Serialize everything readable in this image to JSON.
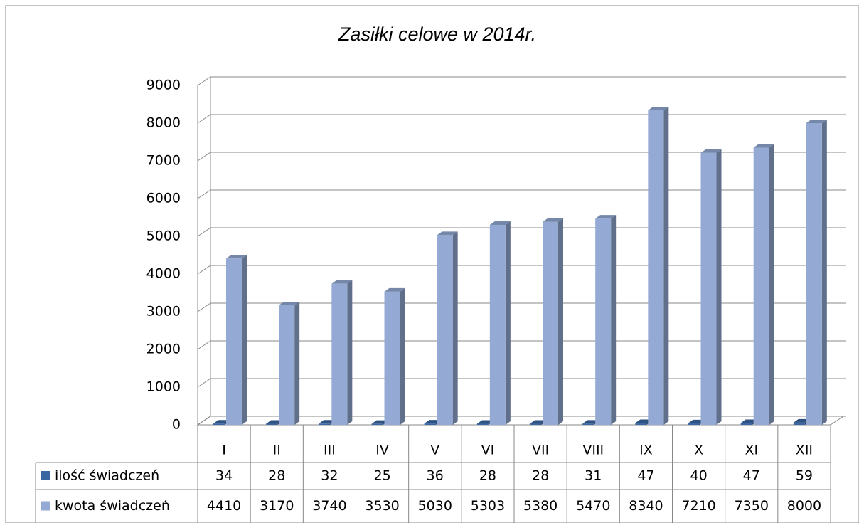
{
  "chart_data": {
    "type": "bar3d",
    "title": "Zasiłki celowe w 2014r.",
    "categories": [
      "I",
      "II",
      "III",
      "IV",
      "V",
      "VI",
      "VII",
      "VIII",
      "IX",
      "X",
      "XI",
      "XII"
    ],
    "series": [
      {
        "name": "ilość świadczeń",
        "color": "#3a67a2",
        "values": [
          34,
          28,
          32,
          25,
          36,
          28,
          28,
          31,
          47,
          40,
          47,
          59
        ]
      },
      {
        "name": "kwota świadczeń",
        "color": "#94aad5",
        "values": [
          4410,
          3170,
          3740,
          3530,
          5030,
          5303,
          5380,
          5470,
          8340,
          7210,
          7350,
          8000
        ]
      }
    ],
    "ylim": [
      0,
      9000
    ],
    "yticks": [
      0,
      1000,
      2000,
      3000,
      4000,
      5000,
      6000,
      7000,
      8000,
      9000
    ],
    "grid": true,
    "legend": "table"
  }
}
